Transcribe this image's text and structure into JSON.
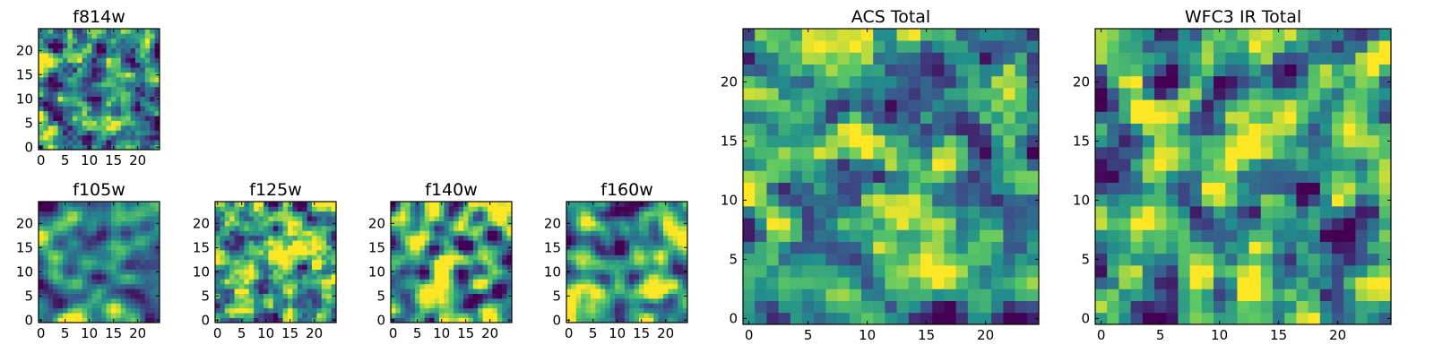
{
  "figure": {
    "colormap": "viridis",
    "colors": [
      "#440154",
      "#3b528b",
      "#21918c",
      "#5ec962",
      "#fde725"
    ],
    "frame_color": "#000000",
    "background": "#ffffff"
  },
  "chart_data": [
    {
      "type": "heatmap",
      "title": "f814w",
      "grid_size": [
        25,
        25
      ],
      "xlim": [
        -0.5,
        24.5
      ],
      "ylim": [
        -0.5,
        24.5
      ],
      "x_ticks": [
        0,
        5,
        10,
        15,
        20
      ],
      "y_ticks": [
        0,
        5,
        10,
        15,
        20
      ],
      "x_tick_labels": [
        "0",
        "5",
        "10",
        "15",
        "20"
      ],
      "y_tick_labels": [
        "0",
        "5",
        "10",
        "15",
        "20"
      ],
      "seed": 11,
      "blur": 0.6,
      "contrast": 1.5,
      "highlights": [
        {
          "x": 22,
          "y": 22,
          "r": 2.2,
          "v": 0.45
        }
      ]
    },
    {
      "type": "heatmap",
      "title": "f105w",
      "grid_size": [
        25,
        25
      ],
      "xlim": [
        -0.5,
        24.5
      ],
      "ylim": [
        -0.5,
        24.5
      ],
      "x_ticks": [
        0,
        5,
        10,
        15,
        20
      ],
      "y_ticks": [
        0,
        5,
        10,
        15,
        20
      ],
      "x_tick_labels": [
        "0",
        "5",
        "10",
        "15",
        "20"
      ],
      "y_tick_labels": [
        "0",
        "5",
        "10",
        "15",
        "20"
      ],
      "seed": 21,
      "blur": 1.5,
      "contrast": 1.6,
      "highlights": [
        {
          "x": 15,
          "y": 10,
          "r": 4,
          "v": 0.2
        }
      ]
    },
    {
      "type": "heatmap",
      "title": "f125w",
      "grid_size": [
        25,
        25
      ],
      "xlim": [
        -0.5,
        24.5
      ],
      "ylim": [
        -0.5,
        24.5
      ],
      "x_ticks": [
        0,
        5,
        10,
        15,
        20
      ],
      "y_ticks": [
        0,
        5,
        10,
        15,
        20
      ],
      "x_tick_labels": [
        "0",
        "5",
        "10",
        "15",
        "20"
      ],
      "y_tick_labels": [
        "0",
        "5",
        "10",
        "15",
        "20"
      ],
      "seed": 31,
      "blur": 1.4,
      "contrast": 1.6,
      "highlights": [
        {
          "x": 11,
          "y": 12,
          "r": 3,
          "v": 0.2
        }
      ]
    },
    {
      "type": "heatmap",
      "title": "f140w",
      "grid_size": [
        25,
        25
      ],
      "xlim": [
        -0.5,
        24.5
      ],
      "ylim": [
        -0.5,
        24.5
      ],
      "x_ticks": [
        0,
        5,
        10,
        15,
        20
      ],
      "y_ticks": [
        0,
        5,
        10,
        15,
        20
      ],
      "x_tick_labels": [
        "0",
        "5",
        "10",
        "15",
        "20"
      ],
      "y_tick_labels": [
        "0",
        "5",
        "10",
        "15",
        "20"
      ],
      "seed": 41,
      "blur": 1.6,
      "contrast": 1.7,
      "highlights": [
        {
          "x": 12,
          "y": 13,
          "r": 3.5,
          "v": 0.25
        }
      ]
    },
    {
      "type": "heatmap",
      "title": "f160w",
      "grid_size": [
        25,
        25
      ],
      "xlim": [
        -0.5,
        24.5
      ],
      "ylim": [
        -0.5,
        24.5
      ],
      "x_ticks": [
        0,
        5,
        10,
        15,
        20
      ],
      "y_ticks": [
        0,
        5,
        10,
        15,
        20
      ],
      "x_tick_labels": [
        "0",
        "5",
        "10",
        "15",
        "20"
      ],
      "y_tick_labels": [
        "0",
        "5",
        "10",
        "15",
        "20"
      ],
      "seed": 51,
      "blur": 1.8,
      "contrast": 1.7,
      "highlights": [
        {
          "x": 10,
          "y": 15,
          "r": 4,
          "v": 0.25
        },
        {
          "x": 20,
          "y": 6,
          "r": 4,
          "v": 0.2
        }
      ]
    },
    {
      "type": "heatmap",
      "title": "ACS Total",
      "grid_size": [
        25,
        25
      ],
      "xlim": [
        -0.5,
        24.5
      ],
      "ylim": [
        -0.5,
        24.5
      ],
      "x_ticks": [
        0,
        5,
        10,
        15,
        20
      ],
      "y_ticks": [
        0,
        5,
        10,
        15,
        20
      ],
      "x_tick_labels": [
        "0",
        "5",
        "10",
        "15",
        "20"
      ],
      "y_tick_labels": [
        "0",
        "5",
        "10",
        "15",
        "20"
      ],
      "seed": 61,
      "blur": 0.6,
      "contrast": 1.4,
      "highlights": [
        {
          "x": 22,
          "y": 21,
          "r": 2.5,
          "v": 0.45
        },
        {
          "x": 12,
          "y": 13,
          "r": 1.2,
          "v": 0.35
        }
      ]
    },
    {
      "type": "heatmap",
      "title": "WFC3 IR Total",
      "grid_size": [
        25,
        25
      ],
      "xlim": [
        -0.5,
        24.5
      ],
      "ylim": [
        -0.5,
        24.5
      ],
      "x_ticks": [
        0,
        5,
        10,
        15,
        20
      ],
      "y_ticks": [
        0,
        5,
        10,
        15,
        20
      ],
      "x_tick_labels": [
        "0",
        "5",
        "10",
        "15",
        "20"
      ],
      "y_tick_labels": [
        "0",
        "5",
        "10",
        "15",
        "20"
      ],
      "seed": 71,
      "blur": 0.6,
      "contrast": 1.4,
      "highlights": [
        {
          "x": 3,
          "y": 20,
          "r": 1.5,
          "v": 0.4
        },
        {
          "x": 12,
          "y": 14,
          "r": 2.5,
          "v": 0.25
        },
        {
          "x": 23,
          "y": 22,
          "r": 1.5,
          "v": 0.35
        }
      ]
    }
  ]
}
